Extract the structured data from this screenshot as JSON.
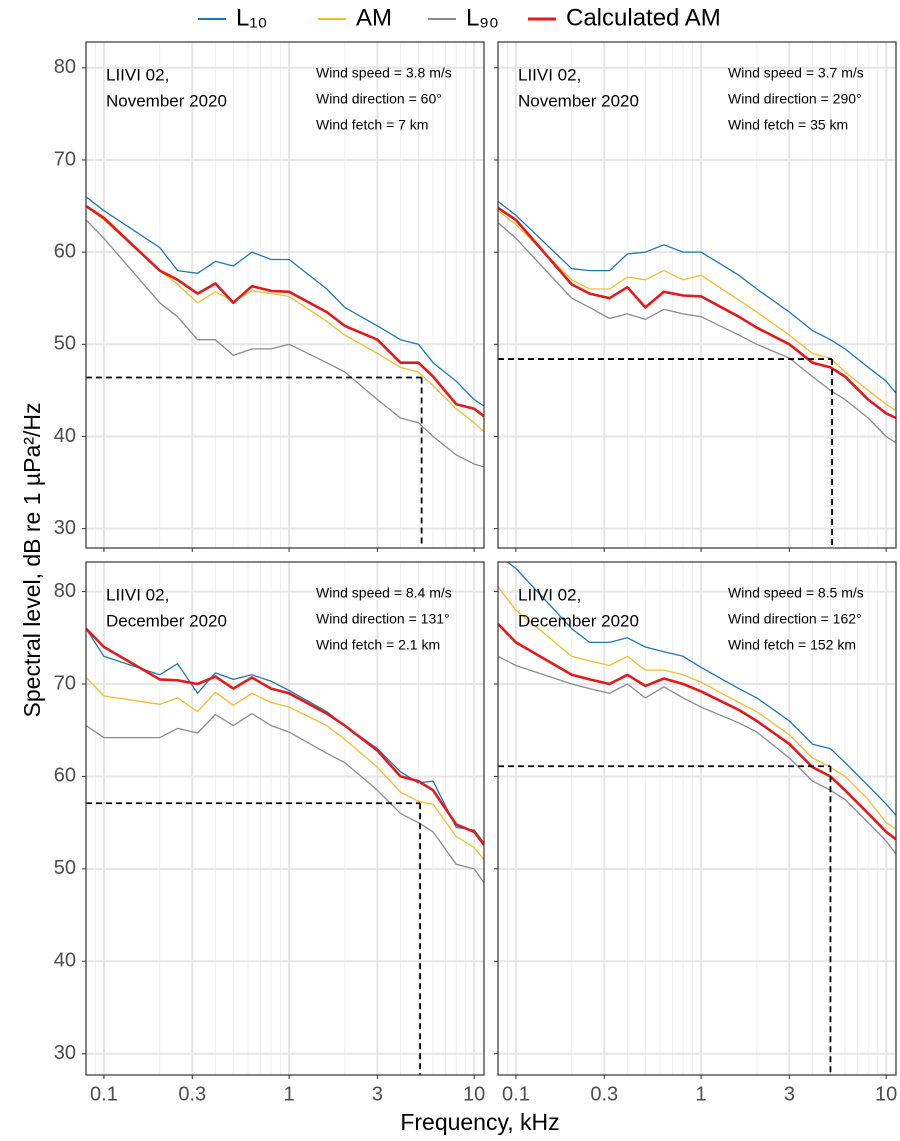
{
  "figure": {
    "xlabel": "Frequency, kHz",
    "ylabel": "Spectral level, dB re 1 µPa²/Hz"
  },
  "chart_data": [
    {
      "type": "line",
      "station": [
        "LIIVI 02,",
        "November 2020"
      ],
      "annotations": [
        "Wind speed = 3.8 m/s",
        "Wind direction = 60°",
        "Wind fetch = 7 km"
      ],
      "x": [
        0.08,
        0.1,
        0.2,
        0.25,
        0.32,
        0.4,
        0.5,
        0.63,
        0.8,
        1,
        1.6,
        2,
        3,
        4,
        5,
        6,
        8,
        10,
        11.3
      ],
      "series": [
        {
          "name": "L₁₀",
          "color": "#1f78b4",
          "values": [
            66,
            64.5,
            60.5,
            58,
            57.7,
            59,
            58.5,
            60,
            59.2,
            59.2,
            56,
            54,
            52,
            50.5,
            50,
            48,
            46,
            44,
            43.3
          ]
        },
        {
          "name": "AM",
          "color": "#f0bf30",
          "values": [
            65,
            63.5,
            58,
            56.5,
            54.5,
            55.7,
            54.7,
            55.8,
            55.5,
            55.2,
            52.5,
            51,
            49,
            47.5,
            47,
            45.5,
            43,
            41.5,
            40.5
          ]
        },
        {
          "name": "L₉₀",
          "color": "#8c8c8c",
          "values": [
            63.5,
            61.5,
            54.5,
            53,
            50.5,
            50.5,
            48.8,
            49.5,
            49.5,
            50,
            48,
            47,
            44,
            42,
            41.5,
            40,
            38,
            37,
            36.7
          ]
        },
        {
          "name": "Calculated AM",
          "color": "#e31a1c",
          "values": [
            65,
            63.7,
            58,
            57,
            55.5,
            56.6,
            54.5,
            56.3,
            55.8,
            55.7,
            53.5,
            52,
            50.5,
            48,
            48,
            46.5,
            43.5,
            43,
            42.2
          ]
        }
      ],
      "marker": {
        "x": 5.2,
        "y": 46.4
      },
      "xlim": [
        0.08,
        11.3
      ],
      "ylim": [
        27.9,
        82.8
      ],
      "xticks": [
        0.1,
        0.3,
        1,
        3,
        10
      ],
      "xminor": [
        0.09,
        0.2,
        0.4,
        0.5,
        0.6,
        0.7,
        0.8,
        0.9,
        2,
        4,
        5,
        6,
        7,
        8,
        9
      ],
      "yticks": [
        30,
        40,
        50,
        60,
        70,
        80
      ],
      "show_xticklabels": false,
      "show_yticklabels": true,
      "grid": true
    },
    {
      "type": "line",
      "station": [
        "LIIVI 02,",
        "November 2020"
      ],
      "annotations": [
        "Wind speed = 3.7 m/s",
        "Wind direction = 290°",
        "Wind fetch = 35 km"
      ],
      "x": [
        0.08,
        0.1,
        0.2,
        0.25,
        0.32,
        0.4,
        0.5,
        0.63,
        0.8,
        1,
        1.6,
        2,
        3,
        4,
        5,
        6,
        8,
        10,
        11.3
      ],
      "series": [
        {
          "name": "L₁₀",
          "color": "#1f78b4",
          "values": [
            65.5,
            64,
            58.2,
            58,
            58,
            59.8,
            60,
            60.8,
            60,
            60,
            57.5,
            56,
            53.5,
            51.5,
            50.5,
            49.5,
            47.5,
            46,
            44.7
          ]
        },
        {
          "name": "AM",
          "color": "#f0bf30",
          "values": [
            64.5,
            63,
            57,
            56,
            56,
            57.3,
            57,
            58,
            57,
            57.5,
            54.8,
            53.5,
            51,
            49,
            48.5,
            47,
            45,
            43.5,
            42.8
          ]
        },
        {
          "name": "L₉₀",
          "color": "#8c8c8c",
          "values": [
            63.2,
            61.5,
            55,
            54,
            52.8,
            53.3,
            52.7,
            53.8,
            53.3,
            53,
            51,
            50,
            48.5,
            46.5,
            45,
            44,
            42,
            40,
            39.3
          ]
        },
        {
          "name": "Calculated AM",
          "color": "#e31a1c",
          "values": [
            64.8,
            63.5,
            56.5,
            55.5,
            55,
            56.2,
            54,
            55.7,
            55.3,
            55.2,
            53,
            51.8,
            50,
            48,
            47.5,
            46.5,
            44,
            42.5,
            42
          ]
        }
      ],
      "marker": {
        "x": 5.1,
        "y": 48.4
      },
      "xlim": [
        0.08,
        11.3
      ],
      "ylim": [
        27.9,
        82.8
      ],
      "xticks": [
        0.1,
        0.3,
        1,
        3,
        10
      ],
      "xminor": [
        0.09,
        0.2,
        0.4,
        0.5,
        0.6,
        0.7,
        0.8,
        0.9,
        2,
        4,
        5,
        6,
        7,
        8,
        9
      ],
      "yticks": [
        30,
        40,
        50,
        60,
        70,
        80
      ],
      "show_xticklabels": false,
      "show_yticklabels": false,
      "grid": true
    },
    {
      "type": "line",
      "station": [
        "LIIVI 02,",
        "December 2020"
      ],
      "annotations": [
        "Wind speed = 8.4 m/s",
        "Wind direction = 131°",
        "Wind fetch = 2.1 km"
      ],
      "x": [
        0.08,
        0.1,
        0.2,
        0.25,
        0.32,
        0.4,
        0.5,
        0.63,
        0.8,
        1,
        1.6,
        2,
        3,
        4,
        5,
        6,
        8,
        10,
        11.3
      ],
      "series": [
        {
          "name": "L₁₀",
          "color": "#1f78b4",
          "values": [
            76,
            73,
            71,
            72.2,
            69,
            71.2,
            70.5,
            71,
            70.3,
            69.3,
            67,
            65.5,
            63,
            60.5,
            59.3,
            59.5,
            54.5,
            54.2,
            52.8
          ]
        },
        {
          "name": "AM",
          "color": "#f0bf30",
          "values": [
            70.7,
            68.7,
            67.8,
            68.5,
            67,
            69.1,
            67.7,
            69,
            68,
            67.5,
            65.5,
            64,
            61,
            58.3,
            57.3,
            57,
            53.5,
            52.3,
            51
          ]
        },
        {
          "name": "L₉₀",
          "color": "#8c8c8c",
          "values": [
            65.5,
            64.2,
            64.2,
            65.2,
            64.7,
            66.7,
            65.5,
            66.8,
            65.5,
            64.8,
            62.5,
            61.5,
            58.5,
            56,
            55,
            54,
            50.5,
            50,
            48.5
          ]
        },
        {
          "name": "Calculated AM",
          "color": "#e31a1c",
          "values": [
            76,
            74,
            70.5,
            70.4,
            70,
            70.8,
            69.5,
            70.7,
            69.5,
            69,
            66.8,
            65.5,
            62.8,
            60,
            59.5,
            58.5,
            54.8,
            54,
            52.6
          ]
        }
      ],
      "marker": {
        "x": 5.1,
        "y": 57.1
      },
      "xlim": [
        0.08,
        11.3
      ],
      "ylim": [
        27.7,
        83.2
      ],
      "xticks": [
        0.1,
        0.3,
        1,
        3,
        10
      ],
      "xminor": [
        0.09,
        0.2,
        0.4,
        0.5,
        0.6,
        0.7,
        0.8,
        0.9,
        2,
        4,
        5,
        6,
        7,
        8,
        9
      ],
      "yticks": [
        30,
        40,
        50,
        60,
        70,
        80
      ],
      "show_xticklabels": true,
      "show_yticklabels": true,
      "grid": true
    },
    {
      "type": "line",
      "station": [
        "LIIVI 02,",
        "December 2020"
      ],
      "annotations": [
        "Wind speed = 8.5 m/s",
        "Wind direction = 162°",
        "Wind fetch = 152 km"
      ],
      "x": [
        0.08,
        0.1,
        0.2,
        0.25,
        0.32,
        0.4,
        0.5,
        0.63,
        0.8,
        1,
        1.6,
        2,
        3,
        4,
        5,
        6,
        8,
        10,
        11.3
      ],
      "series": [
        {
          "name": "L₁₀",
          "color": "#1f78b4",
          "values": [
            84,
            82.5,
            76,
            74.5,
            74.5,
            75,
            74,
            73.5,
            73,
            71.8,
            69.5,
            68.5,
            66,
            63.5,
            63,
            61.5,
            59,
            57,
            55.8
          ]
        },
        {
          "name": "AM",
          "color": "#f0bf30",
          "values": [
            80.5,
            78,
            73,
            72.5,
            72,
            73,
            71.5,
            71.5,
            71,
            70.2,
            68,
            67,
            64.5,
            62,
            61,
            60,
            57.5,
            55,
            54.3
          ]
        },
        {
          "name": "L₉₀",
          "color": "#8c8c8c",
          "values": [
            73,
            72,
            70,
            69.5,
            69,
            70,
            68.5,
            69.7,
            68.5,
            67.5,
            65.8,
            64.8,
            62,
            59.5,
            58.5,
            57.5,
            55,
            53,
            51.6
          ]
        },
        {
          "name": "Calculated AM",
          "color": "#e31a1c",
          "values": [
            76.5,
            74.5,
            71,
            70.5,
            70,
            71,
            69.8,
            70.6,
            70,
            69.2,
            67.2,
            66,
            63.5,
            61,
            60,
            58.5,
            56,
            54,
            53.2
          ]
        }
      ],
      "marker": {
        "x": 5.0,
        "y": 61.1
      },
      "xlim": [
        0.08,
        11.3
      ],
      "ylim": [
        27.7,
        83.2
      ],
      "xticks": [
        0.1,
        0.3,
        1,
        3,
        10
      ],
      "xminor": [
        0.09,
        0.2,
        0.4,
        0.5,
        0.6,
        0.7,
        0.8,
        0.9,
        2,
        4,
        5,
        6,
        7,
        8,
        9
      ],
      "yticks": [
        30,
        40,
        50,
        60,
        70,
        80
      ],
      "show_xticklabels": true,
      "show_yticklabels": false,
      "grid": true
    }
  ]
}
